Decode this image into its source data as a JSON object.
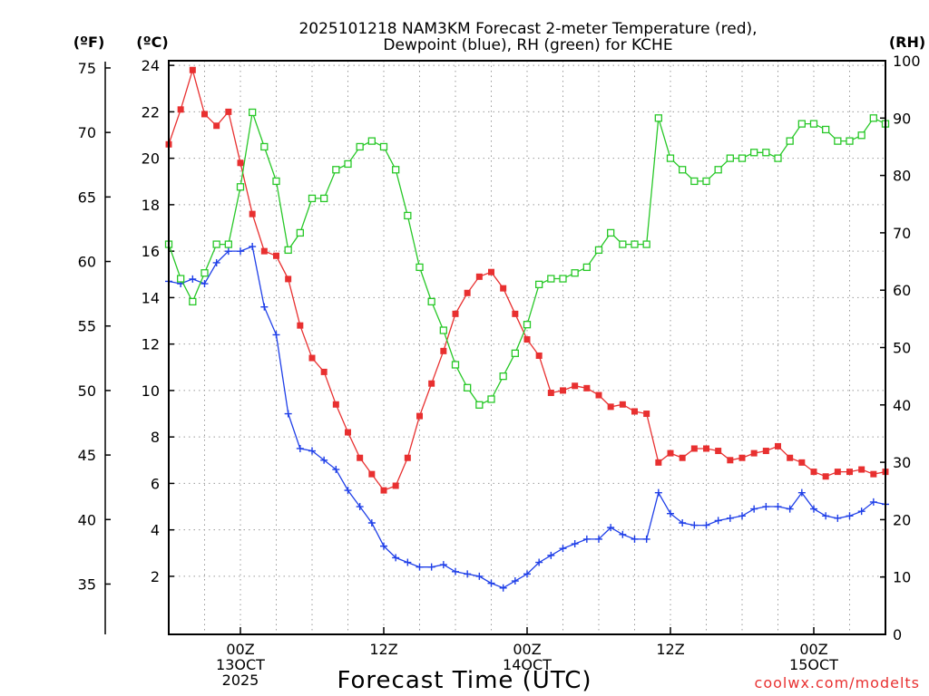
{
  "chart_data": {
    "type": "line",
    "title_lines": [
      "2025101218 NAM3KM Forecast 2-meter Temperature (red),",
      "Dewpoint (blue), RH (green) for KCHE"
    ],
    "xlabel": "Forecast Time (UTC)",
    "credit": "coolwx.com/modelts",
    "units": {
      "fahrenheit": "(ºF)",
      "celsius": "(ºC)",
      "rh": "(RH)"
    },
    "x_unit": "hours since 2025-10-12 18Z",
    "x_range": [
      0,
      60
    ],
    "x_ticks": [
      {
        "x": 6,
        "lines": [
          "00Z",
          "13OCT",
          "2025"
        ]
      },
      {
        "x": 18,
        "lines": [
          "12Z"
        ]
      },
      {
        "x": 30,
        "lines": [
          "00Z",
          "14OCT"
        ]
      },
      {
        "x": 42,
        "lines": [
          "12Z"
        ]
      },
      {
        "x": 54,
        "lines": [
          "00Z",
          "15OCT"
        ]
      }
    ],
    "y_celsius": {
      "range": [
        -0.5,
        24.2
      ],
      "ticks": [
        2,
        4,
        6,
        8,
        10,
        12,
        14,
        16,
        18,
        20,
        22,
        24
      ]
    },
    "y_fahrenheit": {
      "range": [
        31.1,
        75.56
      ],
      "ticks": [
        35,
        40,
        45,
        50,
        55,
        60,
        65,
        70,
        75
      ]
    },
    "y_rh": {
      "range": [
        0,
        100
      ],
      "ticks": [
        0,
        10,
        20,
        30,
        40,
        50,
        60,
        70,
        80,
        90,
        100
      ]
    },
    "x": [
      0,
      1,
      2,
      3,
      4,
      5,
      6,
      7,
      8,
      9,
      10,
      11,
      12,
      13,
      14,
      15,
      16,
      17,
      18,
      19,
      20,
      21,
      22,
      23,
      24,
      25,
      26,
      27,
      28,
      29,
      30,
      31,
      32,
      33,
      34,
      35,
      36,
      37,
      38,
      39,
      40,
      41,
      42,
      43,
      44,
      45,
      46,
      47,
      48,
      49,
      50,
      51,
      52,
      53,
      54,
      55,
      56,
      57,
      58,
      59,
      60
    ],
    "series": [
      {
        "name": "2-meter Temperature",
        "unit": "C",
        "color": "#e83030",
        "marker": "filled-square",
        "values": [
          20.6,
          22.1,
          23.8,
          21.9,
          21.4,
          22.0,
          19.8,
          17.6,
          16.0,
          15.8,
          14.8,
          12.8,
          11.4,
          10.8,
          9.4,
          8.2,
          7.1,
          6.4,
          5.7,
          5.9,
          7.1,
          8.9,
          10.3,
          11.7,
          13.3,
          14.2,
          14.9,
          15.1,
          14.4,
          13.3,
          12.2,
          11.5,
          9.9,
          10.0,
          10.2,
          10.1,
          9.8,
          9.3,
          9.4,
          9.1,
          9.0,
          6.9,
          7.3,
          7.1,
          7.5,
          7.5,
          7.4,
          7.0,
          7.1,
          7.3,
          7.4,
          7.6,
          7.1,
          6.9,
          6.5,
          6.3,
          6.5,
          6.5,
          6.6,
          6.4,
          6.5
        ]
      },
      {
        "name": "Dewpoint",
        "unit": "C",
        "color": "#1f3fe8",
        "marker": "plus",
        "values": [
          14.7,
          14.6,
          14.8,
          14.6,
          15.5,
          16.0,
          16.0,
          16.2,
          13.6,
          12.4,
          9.0,
          7.5,
          7.4,
          7.0,
          6.6,
          5.7,
          5.0,
          4.3,
          3.3,
          2.8,
          2.6,
          2.4,
          2.4,
          2.5,
          2.2,
          2.1,
          2.0,
          1.7,
          1.5,
          1.8,
          2.1,
          2.6,
          2.9,
          3.2,
          3.4,
          3.6,
          3.6,
          4.1,
          3.8,
          3.6,
          3.6,
          5.6,
          4.7,
          4.3,
          4.2,
          4.2,
          4.4,
          4.5,
          4.6,
          4.9,
          5.0,
          5.0,
          4.9,
          5.6,
          4.9,
          4.6,
          4.5,
          4.6,
          4.8,
          5.2,
          5.1
        ]
      },
      {
        "name": "Relative Humidity",
        "unit": "%",
        "color": "#28c828",
        "marker": "open-square",
        "values": [
          68,
          62,
          58,
          63,
          68,
          68,
          78,
          91,
          85,
          79,
          67,
          70,
          76,
          76,
          81,
          82,
          85,
          86,
          85,
          81,
          73,
          64,
          58,
          53,
          47,
          43,
          40,
          41,
          45,
          49,
          54,
          61,
          62,
          62,
          63,
          64,
          67,
          70,
          68,
          68,
          68,
          90,
          83,
          81,
          79,
          79,
          81,
          83,
          83,
          84,
          84,
          83,
          86,
          89,
          89,
          88,
          86,
          86,
          87,
          90,
          89
        ]
      }
    ]
  }
}
